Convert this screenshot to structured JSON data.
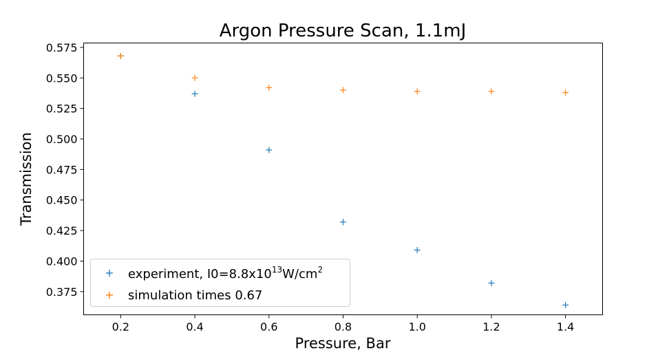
{
  "chart_data": {
    "type": "scatter",
    "title": "Argon Pressure Scan, 1.1mJ",
    "xlabel": "Pressure, Bar",
    "ylabel": "Transmission",
    "xlim": [
      0.1,
      1.5
    ],
    "ylim": [
      0.356,
      0.5786
    ],
    "xticks": [
      "0.2",
      "0.4",
      "0.6",
      "0.8",
      "1.0",
      "1.2",
      "1.4"
    ],
    "xtick_values": [
      0.2,
      0.4,
      0.6,
      0.8,
      1.0,
      1.2,
      1.4
    ],
    "yticks": [
      "0.375",
      "0.400",
      "0.425",
      "0.450",
      "0.475",
      "0.500",
      "0.525",
      "0.550",
      "0.575"
    ],
    "ytick_values": [
      0.375,
      0.4,
      0.425,
      0.45,
      0.475,
      0.5,
      0.525,
      0.55,
      0.575
    ],
    "grid": false,
    "legend_position": "lower-left",
    "series": [
      {
        "name": "experiment, I0=8.8x10^13W/cm^2",
        "legend": {
          "prefix": "experiment, I0=8.8x10",
          "exp1": "13",
          "mid": "W/cm",
          "exp2": "2"
        },
        "marker": "+",
        "color": "#1f77b4",
        "x": [
          0.2,
          0.4,
          0.6,
          0.8,
          1.0,
          1.2,
          1.4
        ],
        "y": [
          0.568,
          0.537,
          0.491,
          0.432,
          0.409,
          0.382,
          0.364
        ]
      },
      {
        "name": "simulation times 0.67",
        "marker": "+",
        "color": "#ff7f0e",
        "x": [
          0.2,
          0.4,
          0.6,
          0.8,
          1.0,
          1.2,
          1.4
        ],
        "y": [
          0.568,
          0.55,
          0.542,
          0.54,
          0.539,
          0.539,
          0.538
        ]
      }
    ]
  }
}
